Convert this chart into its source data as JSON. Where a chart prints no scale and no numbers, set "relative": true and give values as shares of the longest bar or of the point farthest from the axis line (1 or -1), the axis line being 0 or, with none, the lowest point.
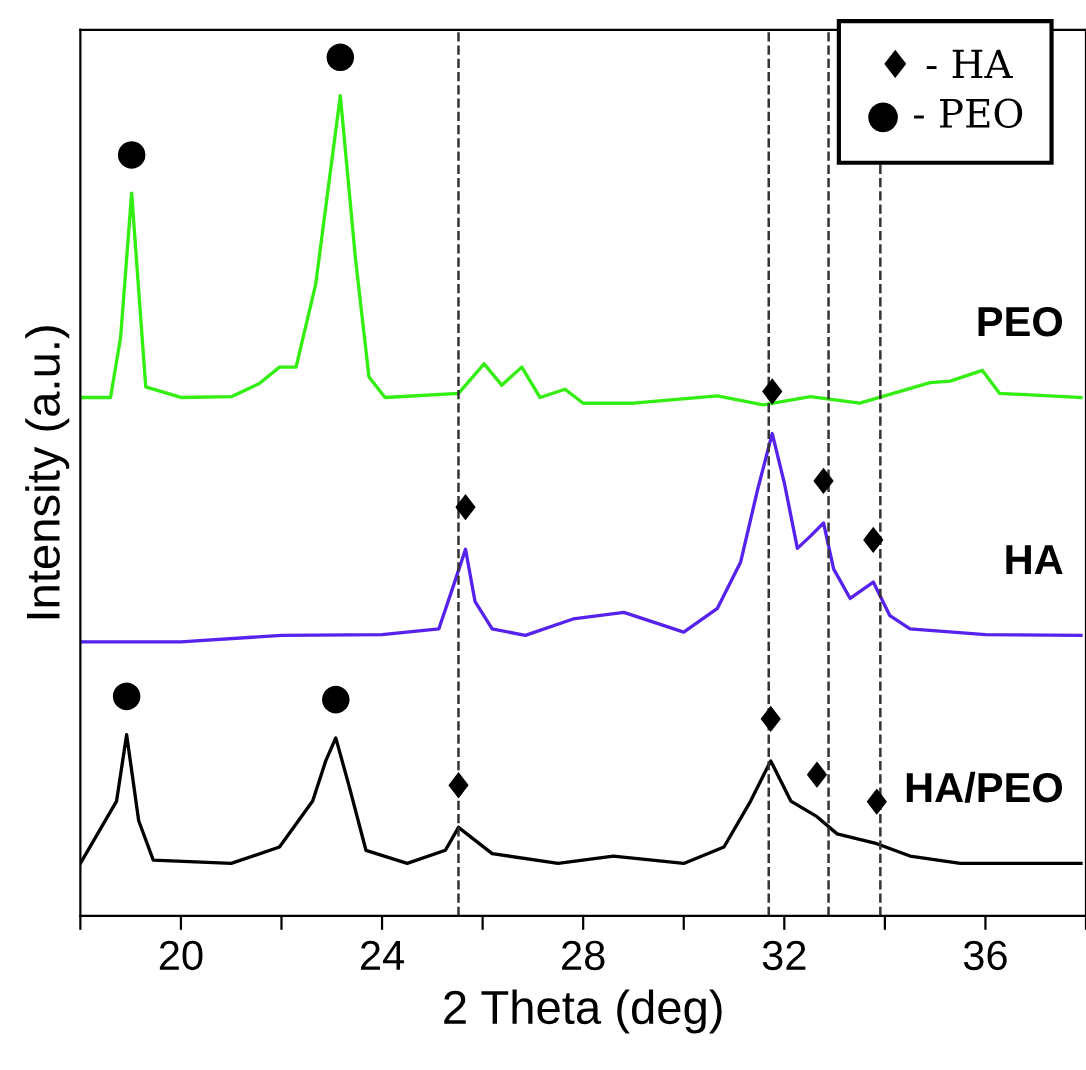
{
  "chart_data": {
    "type": "line",
    "relative": true,
    "xlabel": "2 Theta (deg)",
    "ylabel": "Intensity (a.u.)",
    "xlim": [
      18,
      38
    ],
    "xticks": [
      {
        "value": 18,
        "label": null
      },
      20,
      {
        "value": 22,
        "label": null
      },
      24,
      {
        "value": 26,
        "label": null
      },
      28,
      {
        "value": 30,
        "label": null
      },
      32,
      {
        "value": 34,
        "label": null
      },
      36,
      {
        "value": 38,
        "label": null
      }
    ],
    "series": [
      {
        "name": "PEO",
        "color": "#33ee11",
        "x": [
          18,
          18.6,
          18.8,
          19.02,
          19.3,
          20,
          21,
          21.56,
          21.96,
          22.29,
          22.68,
          23.17,
          23.47,
          23.74,
          24.06,
          25.52,
          26.03,
          26.38,
          26.78,
          27.14,
          27.64,
          28,
          29,
          30.67,
          31.58,
          32.52,
          33.5,
          34.9,
          35.3,
          35.94,
          36.28,
          37.9
        ],
        "values": [
          0.632,
          0.632,
          0.705,
          0.881,
          0.645,
          0.632,
          0.633,
          0.649,
          0.669,
          0.669,
          0.77,
          1.0,
          0.802,
          0.657,
          0.632,
          0.637,
          0.673,
          0.647,
          0.669,
          0.632,
          0.642,
          0.625,
          0.625,
          0.634,
          0.623,
          0.633,
          0.625,
          0.65,
          0.652,
          0.665,
          0.637,
          0.632
        ]
      },
      {
        "name": "HA",
        "color": "#5522ee",
        "x": [
          18,
          20,
          22,
          24,
          25.13,
          25.4,
          25.66,
          25.85,
          26.19,
          26.85,
          27.8,
          28.81,
          30.0,
          30.67,
          31.13,
          31.47,
          31.76,
          32.0,
          32.26,
          32.52,
          32.78,
          32.98,
          33.31,
          33.77,
          34.1,
          34.5,
          36,
          37.9
        ],
        "values": [
          0.334,
          0.334,
          0.342,
          0.343,
          0.35,
          0.399,
          0.447,
          0.383,
          0.35,
          0.342,
          0.362,
          0.37,
          0.346,
          0.375,
          0.431,
          0.52,
          0.588,
          0.528,
          0.448,
          0.463,
          0.479,
          0.423,
          0.387,
          0.407,
          0.366,
          0.35,
          0.343,
          0.342
        ]
      },
      {
        "name": "HA/PEO",
        "color": "#000000",
        "x": [
          18,
          18.72,
          18.92,
          19.16,
          19.45,
          21,
          21.96,
          22.62,
          22.88,
          23.08,
          23.35,
          23.68,
          24.5,
          25.26,
          25.52,
          26.19,
          27.5,
          28.6,
          30.0,
          30.8,
          31.33,
          31.73,
          32.13,
          32.65,
          33.05,
          33.84,
          34.5,
          35.5,
          37.9
        ],
        "values": [
          0.064,
          0.14,
          0.221,
          0.116,
          0.068,
          0.064,
          0.084,
          0.14,
          0.189,
          0.217,
          0.157,
          0.08,
          0.064,
          0.08,
          0.108,
          0.076,
          0.064,
          0.073,
          0.064,
          0.084,
          0.14,
          0.189,
          0.14,
          0.121,
          0.1,
          0.088,
          0.073,
          0.064,
          0.064
        ]
      }
    ],
    "ref_lines": [
      {
        "axis": "x",
        "value": 25.52,
        "color": "#333333",
        "line_style": "dashed"
      },
      {
        "axis": "x",
        "value": 31.69,
        "color": "#333333",
        "line_style": "dashed"
      },
      {
        "axis": "x",
        "value": 32.88,
        "color": "#333333",
        "line_style": "dashed"
      },
      {
        "axis": "x",
        "value": 33.91,
        "color": "#333333",
        "line_style": "dashed"
      }
    ],
    "annotations": [
      "♦ - HA",
      "● - PEO",
      {
        "text": "●",
        "x": 19.02,
        "y": 0.881
      },
      {
        "text": "●",
        "x": 23.17,
        "y": 1.0
      },
      {
        "text": "♦",
        "x": 25.66,
        "y": 0.447
      },
      {
        "text": "♦",
        "x": 31.76,
        "y": 0.588
      },
      {
        "text": "♦",
        "x": 32.78,
        "y": 0.479
      },
      {
        "text": "♦",
        "x": 33.77,
        "y": 0.407
      },
      {
        "text": "●",
        "x": 18.92,
        "y": 0.221
      },
      {
        "text": "●",
        "x": 23.08,
        "y": 0.217
      },
      {
        "text": "♦",
        "x": 25.52,
        "y": 0.108
      },
      {
        "text": "♦",
        "x": 31.73,
        "y": 0.189
      },
      {
        "text": "♦",
        "x": 32.65,
        "y": 0.121
      },
      {
        "text": "♦",
        "x": 33.84,
        "y": 0.088
      }
    ],
    "grid": false,
    "legend": false,
    "marker": "none",
    "line_style": "solid"
  }
}
